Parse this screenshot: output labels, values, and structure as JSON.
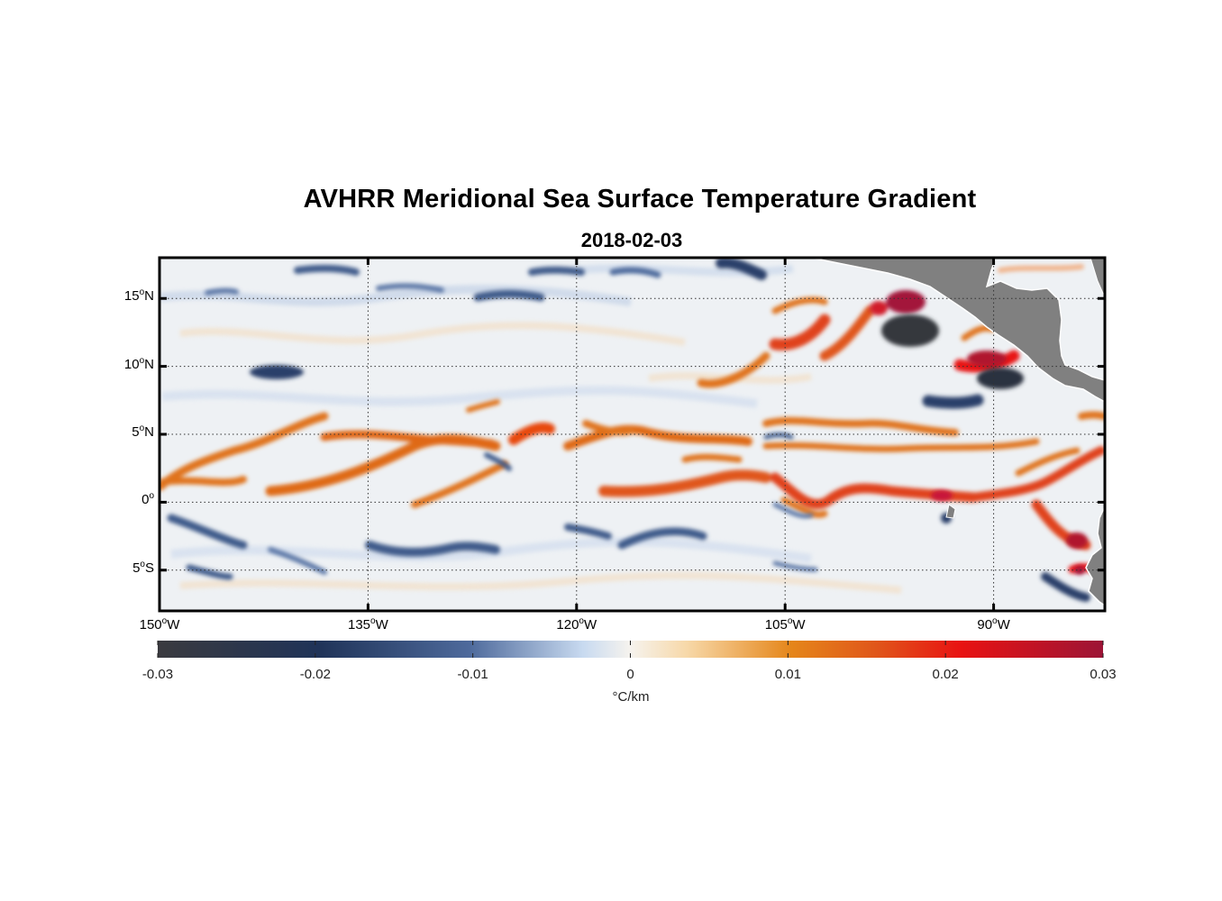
{
  "figure": {
    "title": "AVHRR Meridional Sea Surface Temperature Gradient",
    "subtitle": "2018-02-03"
  },
  "map": {
    "lon_range": [
      -150,
      -82
    ],
    "lat_range": [
      -8,
      18
    ],
    "lat_ticks": [
      {
        "value": 15,
        "deg": "15",
        "hemi": "N"
      },
      {
        "value": 10,
        "deg": "10",
        "hemi": "N"
      },
      {
        "value": 5,
        "deg": "5",
        "hemi": "N"
      },
      {
        "value": 0,
        "deg": "0",
        "hemi": ""
      },
      {
        "value": -5,
        "deg": "5",
        "hemi": "S"
      }
    ],
    "lon_ticks": [
      {
        "value": -150,
        "deg": "150",
        "hemi": "W"
      },
      {
        "value": -135,
        "deg": "135",
        "hemi": "W"
      },
      {
        "value": -120,
        "deg": "120",
        "hemi": "W"
      },
      {
        "value": -105,
        "deg": "105",
        "hemi": "W"
      },
      {
        "value": -90,
        "deg": "90",
        "hemi": "W"
      }
    ],
    "grid": "dotted",
    "land_color": "#808080"
  },
  "colorbar": {
    "ticks": [
      "-0.03",
      "-0.02",
      "-0.01",
      "0",
      "0.01",
      "0.02",
      "0.03"
    ],
    "range": [
      -0.03,
      0.03
    ],
    "unit": "°C/km",
    "colors": [
      "#3a3a3f",
      "#1f3358",
      "#4e6a9c",
      "#c8daf0",
      "#f6f3ee",
      "#f7d8a8",
      "#e5861a",
      "#e0561a",
      "#e81212",
      "#9c1436"
    ]
  },
  "chart_data": {
    "type": "heatmap",
    "variable": "meridional SST gradient",
    "units": "°C/km",
    "value_range": [
      -0.03,
      0.03
    ],
    "features": [
      {
        "sign": "positive",
        "lon": [
          -150,
          -84
        ],
        "lat": [
          0,
          5
        ],
        "peak": 0.02
      },
      {
        "sign": "positive",
        "lon": [
          -104,
          -92
        ],
        "lat": [
          11,
          16
        ],
        "peak": 0.03
      },
      {
        "sign": "negative",
        "lon": [
          -95,
          -89
        ],
        "lat": [
          8,
          14
        ],
        "peak": -0.03
      },
      {
        "sign": "negative",
        "lon": [
          -150,
          -84
        ],
        "lat": [
          -8,
          -2
        ],
        "peak": -0.015
      }
    ]
  }
}
